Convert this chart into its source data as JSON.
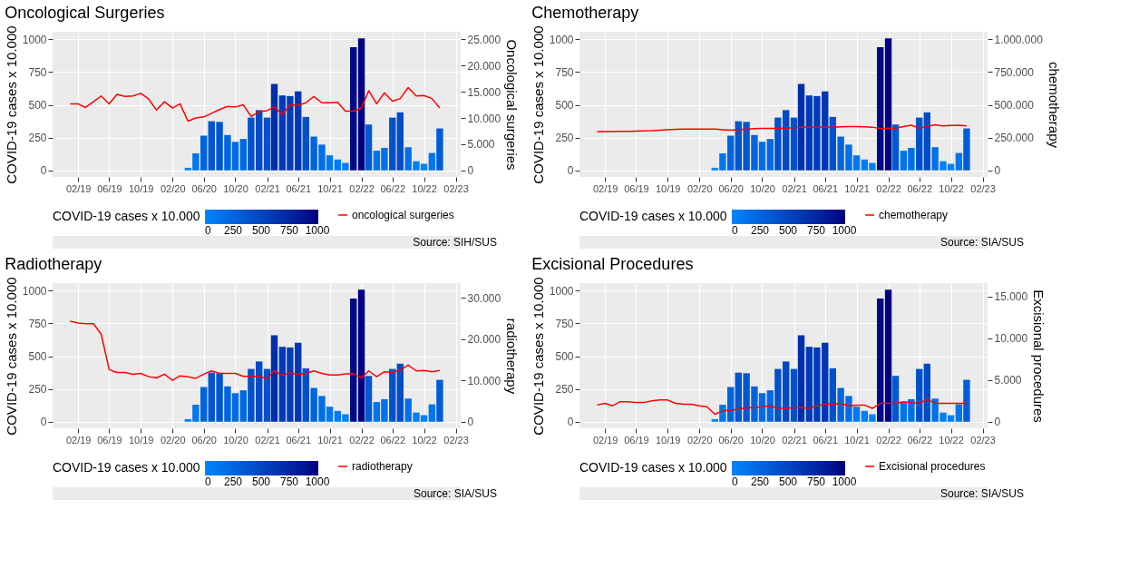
{
  "chart_data": [
    {
      "type": "bar",
      "title": "Oncological Surgeries",
      "ylabel": "COVID-19 cases x 10.000",
      "y2label": "Oncological surgeries",
      "clabel": "COVID-19 cases x 10.000",
      "clim": [
        0,
        1008
      ],
      "cticks": [
        0,
        250,
        500,
        750,
        1000
      ],
      "xlim": [
        "2018-10-25",
        "2023-02-20"
      ],
      "xticks": [
        {
          "value": "2019-02",
          "label": "02/19"
        },
        {
          "value": "2019-06",
          "label": "06/19"
        },
        {
          "value": "2019-10",
          "label": "10/19"
        },
        {
          "value": "2020-02",
          "label": "02/20"
        },
        {
          "value": "2020-06",
          "label": "06/20"
        },
        {
          "value": "2020-10",
          "label": "10/20"
        },
        {
          "value": "2021-02",
          "label": "02/21"
        },
        {
          "value": "2021-06",
          "label": "06/21"
        },
        {
          "value": "2021-10",
          "label": "10/21"
        },
        {
          "value": "2022-02",
          "label": "02/22"
        },
        {
          "value": "2022-06",
          "label": "06/22"
        },
        {
          "value": "2022-10",
          "label": "10/22"
        },
        {
          "value": "2023-02",
          "label": "02/23"
        }
      ],
      "ylim": [
        -50,
        1058
      ],
      "yticks": [
        0,
        250,
        500,
        750,
        1000
      ],
      "y2lim": [
        -1250,
        26450
      ],
      "y2ticks": [
        0,
        {
          "value": 5000,
          "label": "5.000"
        },
        {
          "value": 10000,
          "label": "10.000"
        },
        {
          "value": 15000,
          "label": "15.000"
        },
        {
          "value": 20000,
          "label": "20.000"
        },
        {
          "value": 25000,
          "label": "25.000"
        }
      ],
      "grid": true,
      "legend": "bottom",
      "annotations": [
        "Source: SIH/SUS"
      ],
      "series": [
        {
          "x": [
            "2020-04",
            "2020-05",
            "2020-06",
            "2020-07",
            "2020-08",
            "2020-09",
            "2020-10",
            "2020-11",
            "2020-12",
            "2021-01",
            "2021-02",
            "2021-03",
            "2021-04",
            "2021-05",
            "2021-06",
            "2021-07",
            "2021-08",
            "2021-09",
            "2021-10",
            "2021-11",
            "2021-12",
            "2022-01",
            "2022-02",
            "2022-03",
            "2022-04",
            "2022-05",
            "2022-06",
            "2022-07",
            "2022-08",
            "2022-09",
            "2022-10",
            "2022-11",
            "2022-12"
          ],
          "values": [
            20,
            130,
            265,
            375,
            370,
            270,
            218,
            240,
            403,
            460,
            403,
            660,
            572,
            567,
            603,
            408,
            258,
            197,
            115,
            83,
            57,
            940,
            1008,
            350,
            150,
            172,
            403,
            443,
            177,
            70,
            50,
            133,
            320
          ],
          "colors": [
            "#0085fc",
            "#0076ef",
            "#0064de",
            "#0055d0",
            "#0056d1",
            "#0064dd",
            "#006be4",
            "#0068e1",
            "#0052cc",
            "#004ac5",
            "#0052cc",
            "#002fac",
            "#003bb7",
            "#003cb8",
            "#0037b3",
            "#0051cc",
            "#0065de",
            "#006de6",
            "#0078f1",
            "#007df5",
            "#0080f8",
            "#000988",
            "#000080",
            "#0059d3",
            "#0074ec",
            "#0071e9",
            "#0052cc",
            "#004cc7",
            "#0070e9",
            "#007ff6",
            "#0081f9",
            "#0076ee",
            "#005dd7"
          ]
        },
        {
          "type": "line",
          "axis": "y2",
          "name": "oncological surgeries",
          "color": "#ff0000",
          "x": [
            "2019-01",
            "2019-02",
            "2019-03",
            "2019-04",
            "2019-05",
            "2019-06",
            "2019-07",
            "2019-08",
            "2019-09",
            "2019-10",
            "2019-11",
            "2019-12",
            "2020-01",
            "2020-02",
            "2020-03",
            "2020-04",
            "2020-05",
            "2020-06",
            "2020-07",
            "2020-08",
            "2020-09",
            "2020-10",
            "2020-11",
            "2020-12",
            "2021-01",
            "2021-02",
            "2021-03",
            "2021-04",
            "2021-05",
            "2021-06",
            "2021-07",
            "2021-08",
            "2021-09",
            "2021-10",
            "2021-11",
            "2021-12",
            "2022-01",
            "2022-02",
            "2022-03",
            "2022-04",
            "2022-05",
            "2022-06",
            "2022-07",
            "2022-08",
            "2022-09",
            "2022-10",
            "2022-11",
            "2022-12"
          ],
          "values": [
            12700,
            12700,
            12000,
            13100,
            14200,
            12700,
            14500,
            14100,
            14200,
            14700,
            13600,
            11500,
            13100,
            11900,
            12700,
            9400,
            10000,
            10200,
            10900,
            11600,
            12200,
            12100,
            12500,
            10300,
            11200,
            11400,
            12100,
            10600,
            12500,
            12400,
            12900,
            14100,
            12900,
            12900,
            13000,
            11300,
            11300,
            11900,
            15200,
            12700,
            14800,
            13200,
            13700,
            15800,
            14200,
            14300,
            13700,
            11900
          ]
        }
      ]
    },
    {
      "type": "bar",
      "title": "Chemotherapy",
      "ylabel": "COVID-19 cases x 10.000",
      "y2label": "chemotherapy",
      "clabel": "COVID-19 cases x 10.000",
      "clim": [
        0,
        1008
      ],
      "cticks": [
        0,
        250,
        500,
        750,
        1000
      ],
      "xlim": [
        "2018-10-25",
        "2023-02-20"
      ],
      "xticks": [
        {
          "value": "2019-02",
          "label": "02/19"
        },
        {
          "value": "2019-06",
          "label": "06/19"
        },
        {
          "value": "2019-10",
          "label": "10/19"
        },
        {
          "value": "2020-02",
          "label": "02/20"
        },
        {
          "value": "2020-06",
          "label": "06/20"
        },
        {
          "value": "2020-10",
          "label": "10/20"
        },
        {
          "value": "2021-02",
          "label": "02/21"
        },
        {
          "value": "2021-06",
          "label": "06/21"
        },
        {
          "value": "2021-10",
          "label": "10/21"
        },
        {
          "value": "2022-02",
          "label": "02/22"
        },
        {
          "value": "2022-06",
          "label": "06/22"
        },
        {
          "value": "2022-10",
          "label": "10/22"
        },
        {
          "value": "2023-02",
          "label": "02/23"
        }
      ],
      "ylim": [
        -50,
        1058
      ],
      "yticks": [
        0,
        250,
        500,
        750,
        1000
      ],
      "y2lim": [
        -50000,
        1058000
      ],
      "y2ticks": [
        0,
        {
          "value": 250000,
          "label": "250.000"
        },
        {
          "value": 500000,
          "label": "500.000"
        },
        {
          "value": 750000,
          "label": "750.000"
        },
        {
          "value": 1000000,
          "label": "1.000.000"
        }
      ],
      "grid": true,
      "legend": "bottom",
      "annotations": [
        "Source: SIA/SUS"
      ],
      "series": [
        {
          "x": [
            "2020-04",
            "2020-05",
            "2020-06",
            "2020-07",
            "2020-08",
            "2020-09",
            "2020-10",
            "2020-11",
            "2020-12",
            "2021-01",
            "2021-02",
            "2021-03",
            "2021-04",
            "2021-05",
            "2021-06",
            "2021-07",
            "2021-08",
            "2021-09",
            "2021-10",
            "2021-11",
            "2021-12",
            "2022-01",
            "2022-02",
            "2022-03",
            "2022-04",
            "2022-05",
            "2022-06",
            "2022-07",
            "2022-08",
            "2022-09",
            "2022-10",
            "2022-11",
            "2022-12"
          ],
          "values": [
            20,
            130,
            265,
            375,
            370,
            270,
            218,
            240,
            403,
            460,
            403,
            660,
            572,
            567,
            603,
            408,
            258,
            197,
            115,
            83,
            57,
            940,
            1008,
            350,
            150,
            172,
            403,
            443,
            177,
            70,
            50,
            133,
            320
          ],
          "colors": [
            "#0085fc",
            "#0076ef",
            "#0064de",
            "#0055d0",
            "#0056d1",
            "#0064dd",
            "#006be4",
            "#0068e1",
            "#0052cc",
            "#004ac5",
            "#0052cc",
            "#002fac",
            "#003bb7",
            "#003cb8",
            "#0037b3",
            "#0051cc",
            "#0065de",
            "#006de6",
            "#0078f1",
            "#007df5",
            "#0080f8",
            "#000988",
            "#000080",
            "#0059d3",
            "#0074ec",
            "#0071e9",
            "#0052cc",
            "#004cc7",
            "#0070e9",
            "#007ff6",
            "#0081f9",
            "#0076ee",
            "#005dd7"
          ]
        },
        {
          "type": "line",
          "axis": "y2",
          "name": "chemotherapy",
          "color": "#ff0000",
          "x": [
            "2019-01",
            "2019-02",
            "2019-03",
            "2019-04",
            "2019-05",
            "2019-06",
            "2019-07",
            "2019-08",
            "2019-09",
            "2019-10",
            "2019-11",
            "2019-12",
            "2020-01",
            "2020-02",
            "2020-03",
            "2020-04",
            "2020-05",
            "2020-06",
            "2020-07",
            "2020-08",
            "2020-09",
            "2020-10",
            "2020-11",
            "2020-12",
            "2021-01",
            "2021-02",
            "2021-03",
            "2021-04",
            "2021-05",
            "2021-06",
            "2021-07",
            "2021-08",
            "2021-09",
            "2021-10",
            "2021-11",
            "2021-12",
            "2022-01",
            "2022-02",
            "2022-03",
            "2022-04",
            "2022-05",
            "2022-06",
            "2022-07",
            "2022-08",
            "2022-09",
            "2022-10",
            "2022-11",
            "2022-12"
          ],
          "values": [
            297000,
            297000,
            297000,
            298000,
            298000,
            300000,
            302000,
            303000,
            306000,
            310000,
            313000,
            315000,
            316000,
            316000,
            316000,
            315000,
            310000,
            306000,
            310000,
            315000,
            318000,
            320000,
            320000,
            320000,
            322000,
            325000,
            330000,
            330000,
            330000,
            330000,
            330000,
            332000,
            335000,
            335000,
            333000,
            330000,
            318000,
            322000,
            322000,
            335000,
            345000,
            322000,
            335000,
            348000,
            340000,
            343000,
            345000,
            340000
          ]
        }
      ]
    },
    {
      "type": "bar",
      "title": "Radiotherapy",
      "ylabel": "COVID-19 cases x 10.000",
      "y2label": "radiotherapy",
      "clabel": "COVID-19 cases x 10.000",
      "clim": [
        0,
        1008
      ],
      "cticks": [
        0,
        250,
        500,
        750,
        1000
      ],
      "xlim": [
        "2018-10-25",
        "2023-02-20"
      ],
      "xticks": [
        {
          "value": "2019-02",
          "label": "02/19"
        },
        {
          "value": "2019-06",
          "label": "06/19"
        },
        {
          "value": "2019-10",
          "label": "10/19"
        },
        {
          "value": "2020-02",
          "label": "02/20"
        },
        {
          "value": "2020-06",
          "label": "06/20"
        },
        {
          "value": "2020-10",
          "label": "10/20"
        },
        {
          "value": "2021-02",
          "label": "02/21"
        },
        {
          "value": "2021-06",
          "label": "06/21"
        },
        {
          "value": "2021-10",
          "label": "10/21"
        },
        {
          "value": "2022-02",
          "label": "02/22"
        },
        {
          "value": "2022-06",
          "label": "06/22"
        },
        {
          "value": "2022-10",
          "label": "10/22"
        },
        {
          "value": "2023-02",
          "label": "02/23"
        }
      ],
      "ylim": [
        -50,
        1058
      ],
      "yticks": [
        0,
        250,
        500,
        750,
        1000
      ],
      "y2lim": [
        -1585,
        33540
      ],
      "y2ticks": [
        0,
        {
          "value": 10000,
          "label": "10.000"
        },
        {
          "value": 20000,
          "label": "20.000"
        },
        {
          "value": 30000,
          "label": "30.000"
        }
      ],
      "grid": true,
      "legend": "bottom",
      "annotations": [
        "Source: SIA/SUS"
      ],
      "series": [
        {
          "x": [
            "2020-04",
            "2020-05",
            "2020-06",
            "2020-07",
            "2020-08",
            "2020-09",
            "2020-10",
            "2020-11",
            "2020-12",
            "2021-01",
            "2021-02",
            "2021-03",
            "2021-04",
            "2021-05",
            "2021-06",
            "2021-07",
            "2021-08",
            "2021-09",
            "2021-10",
            "2021-11",
            "2021-12",
            "2022-01",
            "2022-02",
            "2022-03",
            "2022-04",
            "2022-05",
            "2022-06",
            "2022-07",
            "2022-08",
            "2022-09",
            "2022-10",
            "2022-11",
            "2022-12"
          ],
          "values": [
            20,
            130,
            265,
            375,
            370,
            270,
            218,
            240,
            403,
            460,
            403,
            660,
            572,
            567,
            603,
            408,
            258,
            197,
            115,
            83,
            57,
            940,
            1008,
            350,
            150,
            172,
            403,
            443,
            177,
            70,
            50,
            133,
            320
          ],
          "colors": [
            "#0085fc",
            "#0076ef",
            "#0064de",
            "#0055d0",
            "#0056d1",
            "#0064dd",
            "#006be4",
            "#0068e1",
            "#0052cc",
            "#004ac5",
            "#0052cc",
            "#002fac",
            "#003bb7",
            "#003cb8",
            "#0037b3",
            "#0051cc",
            "#0065de",
            "#006de6",
            "#0078f1",
            "#007df5",
            "#0080f8",
            "#000988",
            "#000080",
            "#0059d3",
            "#0074ec",
            "#0071e9",
            "#0052cc",
            "#004cc7",
            "#0070e9",
            "#007ff6",
            "#0081f9",
            "#0076ee",
            "#005dd7"
          ]
        },
        {
          "type": "line",
          "axis": "y2",
          "name": "radiotherapy",
          "color": "#ff0000",
          "x": [
            "2019-01",
            "2019-02",
            "2019-03",
            "2019-04",
            "2019-05",
            "2019-06",
            "2019-07",
            "2019-08",
            "2019-09",
            "2019-10",
            "2019-11",
            "2019-12",
            "2020-01",
            "2020-02",
            "2020-03",
            "2020-04",
            "2020-05",
            "2020-06",
            "2020-07",
            "2020-08",
            "2020-09",
            "2020-10",
            "2020-11",
            "2020-12",
            "2021-01",
            "2021-02",
            "2021-03",
            "2021-04",
            "2021-05",
            "2021-06",
            "2021-07",
            "2021-08",
            "2021-09",
            "2021-10",
            "2021-11",
            "2021-12",
            "2022-01",
            "2022-02",
            "2022-03",
            "2022-04",
            "2022-05",
            "2022-06",
            "2022-07",
            "2022-08",
            "2022-09",
            "2022-10",
            "2022-11",
            "2022-12"
          ],
          "values": [
            24300,
            23900,
            23700,
            23700,
            21200,
            12600,
            11900,
            11900,
            11500,
            11700,
            10900,
            10600,
            11500,
            10000,
            11100,
            10900,
            10500,
            11500,
            12300,
            11700,
            11700,
            11700,
            11000,
            11000,
            11000,
            10400,
            12300,
            11200,
            11800,
            11400,
            11700,
            12300,
            11700,
            11300,
            11300,
            11600,
            11600,
            10600,
            12300,
            10900,
            12100,
            11900,
            12500,
            13700,
            12300,
            12400,
            12100,
            12400
          ]
        }
      ]
    },
    {
      "type": "bar",
      "title": "Excisional Procedures",
      "ylabel": "COVID-19 cases x 10.000",
      "y2label": "Excisional procedures",
      "clabel": "COVID-19 cases x 10.000",
      "clim": [
        0,
        1008
      ],
      "cticks": [
        0,
        250,
        500,
        750,
        1000
      ],
      "xlim": [
        "2018-10-25",
        "2023-02-20"
      ],
      "xticks": [
        {
          "value": "2019-02",
          "label": "02/19"
        },
        {
          "value": "2019-06",
          "label": "06/19"
        },
        {
          "value": "2019-10",
          "label": "10/19"
        },
        {
          "value": "2020-02",
          "label": "02/20"
        },
        {
          "value": "2020-06",
          "label": "06/20"
        },
        {
          "value": "2020-10",
          "label": "10/20"
        },
        {
          "value": "2021-02",
          "label": "02/21"
        },
        {
          "value": "2021-06",
          "label": "06/21"
        },
        {
          "value": "2021-10",
          "label": "10/21"
        },
        {
          "value": "2022-02",
          "label": "02/22"
        },
        {
          "value": "2022-06",
          "label": "06/22"
        },
        {
          "value": "2022-10",
          "label": "10/22"
        },
        {
          "value": "2023-02",
          "label": "02/23"
        }
      ],
      "ylim": [
        -50,
        1058
      ],
      "yticks": [
        0,
        250,
        500,
        750,
        1000
      ],
      "y2lim": [
        -785,
        16610
      ],
      "y2ticks": [
        0,
        {
          "value": 5000,
          "label": "5.000"
        },
        {
          "value": 10000,
          "label": "10.000"
        },
        {
          "value": 15000,
          "label": "15.000"
        }
      ],
      "grid": true,
      "legend": "bottom",
      "annotations": [
        "Source: SIA/SUS"
      ],
      "series": [
        {
          "x": [
            "2020-04",
            "2020-05",
            "2020-06",
            "2020-07",
            "2020-08",
            "2020-09",
            "2020-10",
            "2020-11",
            "2020-12",
            "2021-01",
            "2021-02",
            "2021-03",
            "2021-04",
            "2021-05",
            "2021-06",
            "2021-07",
            "2021-08",
            "2021-09",
            "2021-10",
            "2021-11",
            "2021-12",
            "2022-01",
            "2022-02",
            "2022-03",
            "2022-04",
            "2022-05",
            "2022-06",
            "2022-07",
            "2022-08",
            "2022-09",
            "2022-10",
            "2022-11",
            "2022-12"
          ],
          "values": [
            20,
            130,
            265,
            375,
            370,
            270,
            218,
            240,
            403,
            460,
            403,
            660,
            572,
            567,
            603,
            408,
            258,
            197,
            115,
            83,
            57,
            940,
            1008,
            350,
            150,
            172,
            403,
            443,
            177,
            70,
            50,
            133,
            320
          ],
          "colors": [
            "#0085fc",
            "#0076ef",
            "#0064de",
            "#0055d0",
            "#0056d1",
            "#0064dd",
            "#006be4",
            "#0068e1",
            "#0052cc",
            "#004ac5",
            "#0052cc",
            "#002fac",
            "#003bb7",
            "#003cb8",
            "#0037b3",
            "#0051cc",
            "#0065de",
            "#006de6",
            "#0078f1",
            "#007df5",
            "#0080f8",
            "#000988",
            "#000080",
            "#0059d3",
            "#0074ec",
            "#0071e9",
            "#0052cc",
            "#004cc7",
            "#0070e9",
            "#007ff6",
            "#0081f9",
            "#0076ee",
            "#005dd7"
          ]
        },
        {
          "type": "line",
          "axis": "y2",
          "name": "Excisional procedures",
          "color": "#ff0000",
          "x": [
            "2019-01",
            "2019-02",
            "2019-03",
            "2019-04",
            "2019-05",
            "2019-06",
            "2019-07",
            "2019-08",
            "2019-09",
            "2019-10",
            "2019-11",
            "2019-12",
            "2020-01",
            "2020-02",
            "2020-03",
            "2020-04",
            "2020-05",
            "2020-06",
            "2020-07",
            "2020-08",
            "2020-09",
            "2020-10",
            "2020-11",
            "2020-12",
            "2021-01",
            "2021-02",
            "2021-03",
            "2021-04",
            "2021-05",
            "2021-06",
            "2021-07",
            "2021-08",
            "2021-09",
            "2021-10",
            "2021-11",
            "2021-12",
            "2022-01",
            "2022-02",
            "2022-03",
            "2022-04",
            "2022-05",
            "2022-06",
            "2022-07",
            "2022-08",
            "2022-09",
            "2022-10",
            "2022-11",
            "2022-12"
          ],
          "values": [
            2000,
            2200,
            1900,
            2400,
            2400,
            2300,
            2300,
            2500,
            2600,
            2600,
            2200,
            2100,
            2100,
            1900,
            1800,
            900,
            1300,
            1400,
            1500,
            1700,
            1700,
            1800,
            1900,
            1600,
            1600,
            1700,
            1700,
            1600,
            1900,
            2100,
            2100,
            2200,
            1900,
            2000,
            2000,
            1600,
            2200,
            2200,
            2200,
            2400,
            2300,
            2200,
            2700,
            2200,
            2200,
            2200,
            2200,
            2200
          ]
        }
      ]
    }
  ]
}
